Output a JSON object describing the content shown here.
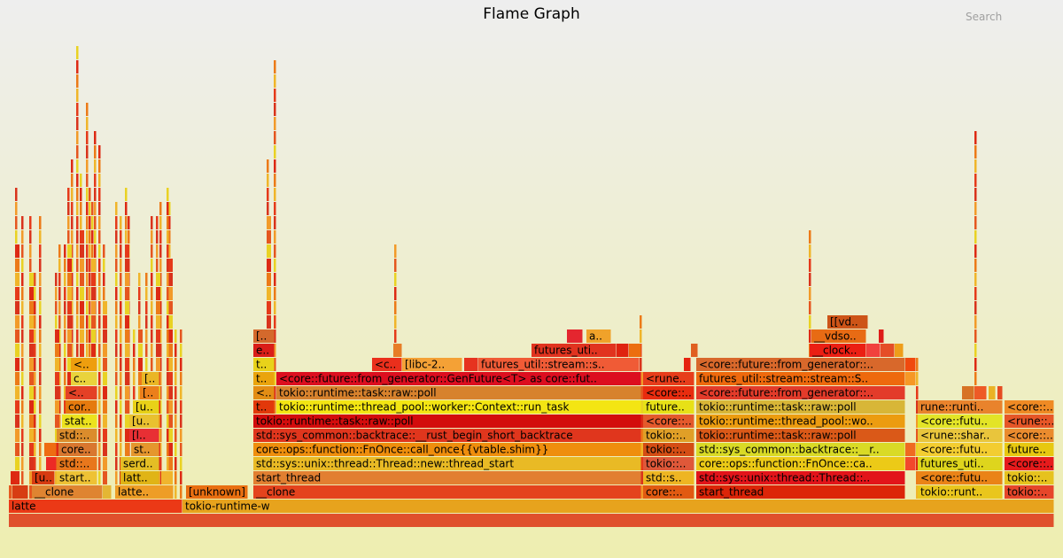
{
  "header": {
    "title": "Flame Graph",
    "search_label": "Search"
  },
  "chart_data": {
    "type": "flamegraph",
    "total_samples": 1180,
    "max_depth": 34,
    "frames": [
      {
        "name": "",
        "s": 0,
        "w": 1180,
        "d": 0,
        "c": "#e0502c"
      },
      {
        "name": "latte",
        "s": 0,
        "w": 196,
        "d": 1,
        "c": "#eb3916"
      },
      {
        "name": "tokio-runtime-w",
        "s": 196,
        "w": 984,
        "d": 1,
        "c": "#e7a31d"
      },
      {
        "name": "",
        "s": 0,
        "w": 4,
        "d": 2,
        "c": "#e55a20"
      },
      {
        "name": "",
        "s": 4,
        "w": 18,
        "d": 2,
        "c": "#d73c13"
      },
      {
        "name": "__clone",
        "s": 26,
        "w": 80,
        "d": 2,
        "c": "#df8431"
      },
      {
        "name": "",
        "s": 106,
        "w": 10,
        "d": 2,
        "c": "#e4b634"
      },
      {
        "name": "latte..",
        "s": 120,
        "w": 66,
        "d": 2,
        "c": "#ee9d26"
      },
      {
        "name": "[unknown]",
        "s": 200,
        "w": 70,
        "d": 2,
        "c": "#e96f11"
      },
      {
        "name": "__clone",
        "s": 276,
        "w": 438,
        "d": 2,
        "c": "#e4431d"
      },
      {
        "name": "core::..",
        "s": 716,
        "w": 58,
        "d": 2,
        "c": "#e15a11"
      },
      {
        "name": "start_thread",
        "s": 776,
        "w": 236,
        "d": 2,
        "c": "#dc2508"
      },
      {
        "name": "tokio::runt..",
        "s": 1026,
        "w": 96,
        "d": 2,
        "c": "#e9c61d"
      },
      {
        "name": "tokio::..",
        "s": 1124,
        "w": 56,
        "d": 2,
        "c": "#e6462a"
      },
      {
        "name": "",
        "s": 2,
        "w": 6,
        "d": 3,
        "c": "#dd2810"
      },
      {
        "name": "[u..",
        "s": 26,
        "w": 26,
        "d": 3,
        "c": "#d73b10"
      },
      {
        "name": "start..",
        "s": 54,
        "w": 46,
        "d": 3,
        "c": "#eec235"
      },
      {
        "name": "latt..",
        "s": 126,
        "w": 44,
        "d": 3,
        "c": "#e0b416"
      },
      {
        "name": "",
        "s": 172,
        "w": 10,
        "d": 3,
        "c": "#f0b52e"
      },
      {
        "name": "start_thread",
        "s": 276,
        "w": 438,
        "d": 3,
        "c": "#e27f31"
      },
      {
        "name": "std::s..",
        "s": 716,
        "w": 58,
        "d": 3,
        "c": "#eeb522"
      },
      {
        "name": "std::sys::unix::thread::Thread::..",
        "s": 776,
        "w": 236,
        "d": 3,
        "c": "#e2141a"
      },
      {
        "name": "<core::futu..",
        "s": 1026,
        "w": 96,
        "d": 3,
        "c": "#ea8317"
      },
      {
        "name": "tokio::..",
        "s": 1124,
        "w": 56,
        "d": 3,
        "c": "#e6c21e"
      },
      {
        "name": "",
        "s": 42,
        "w": 12,
        "d": 4,
        "c": "#ec2a25"
      },
      {
        "name": "std::..",
        "s": 54,
        "w": 46,
        "d": 4,
        "c": "#e8771c"
      },
      {
        "name": "serd..",
        "s": 126,
        "w": 44,
        "d": 4,
        "c": "#e4be25"
      },
      {
        "name": "std::sys::unix::thread::Thread::new::thread_start",
        "s": 276,
        "w": 438,
        "d": 4,
        "c": "#e9ba25"
      },
      {
        "name": "tokio::..",
        "s": 716,
        "w": 58,
        "d": 4,
        "c": "#df5839"
      },
      {
        "name": "core::ops::function::FnOnce::ca..",
        "s": 776,
        "w": 236,
        "d": 4,
        "c": "#ecca17"
      },
      {
        "name": "",
        "s": 1012,
        "w": 12,
        "d": 4,
        "c": "#f2482c"
      },
      {
        "name": "futures_uti..",
        "s": 1026,
        "w": 96,
        "d": 4,
        "c": "#ded51d"
      },
      {
        "name": "<core::..",
        "s": 1124,
        "w": 56,
        "d": 4,
        "c": "#e61b1c"
      },
      {
        "name": "",
        "s": 40,
        "w": 14,
        "d": 5,
        "c": "#ee6c12"
      },
      {
        "name": "core..",
        "s": 56,
        "w": 44,
        "d": 5,
        "c": "#d9772f"
      },
      {
        "name": "st..",
        "s": 138,
        "w": 32,
        "d": 5,
        "c": "#e5962d"
      },
      {
        "name": "core::ops::function::FnOnce::call_once{{vtable.shim}}",
        "s": 276,
        "w": 438,
        "d": 5,
        "c": "#ef8e0d"
      },
      {
        "name": "tokio::..",
        "s": 716,
        "w": 58,
        "d": 5,
        "c": "#d44d14"
      },
      {
        "name": "std::sys_common::backtrace::__r..",
        "s": 776,
        "w": 236,
        "d": 5,
        "c": "#d9da26"
      },
      {
        "name": "",
        "s": 1012,
        "w": 12,
        "d": 5,
        "c": "#ef6921"
      },
      {
        "name": "<core::futu..",
        "s": 1026,
        "w": 96,
        "d": 5,
        "c": "#f3cd31"
      },
      {
        "name": "future..",
        "s": 1124,
        "w": 56,
        "d": 5,
        "c": "#e7c810"
      },
      {
        "name": "std::..",
        "s": 54,
        "w": 46,
        "d": 6,
        "c": "#db8c2c"
      },
      {
        "name": "[l..",
        "s": 136,
        "w": 34,
        "d": 6,
        "c": "#e82f34"
      },
      {
        "name": "std::sys_common::backtrace::__rust_begin_short_backtrace",
        "s": 276,
        "w": 438,
        "d": 6,
        "c": "#e0361d"
      },
      {
        "name": "tokio::..",
        "s": 716,
        "w": 58,
        "d": 6,
        "c": "#e09f27"
      },
      {
        "name": "tokio::runtime::task::raw::poll",
        "s": 776,
        "w": 236,
        "d": 6,
        "c": "#da5918"
      },
      {
        "name": "<rune::shar..",
        "s": 1026,
        "w": 96,
        "d": 6,
        "c": "#e9c53c"
      },
      {
        "name": "<core::..",
        "s": 1124,
        "w": 56,
        "d": 6,
        "c": "#ea8b2e"
      },
      {
        "name": "stat..",
        "s": 60,
        "w": 40,
        "d": 7,
        "c": "#ece21d"
      },
      {
        "name": "[u..",
        "s": 136,
        "w": 34,
        "d": 7,
        "c": "#e9c12f"
      },
      {
        "name": "tokio::runtime::task::raw::poll",
        "s": 276,
        "w": 438,
        "d": 7,
        "c": "#d30c0c"
      },
      {
        "name": "<core::..",
        "s": 716,
        "w": 58,
        "d": 7,
        "c": "#e4592b"
      },
      {
        "name": "tokio::runtime::thread_pool::wo..",
        "s": 776,
        "w": 236,
        "d": 7,
        "c": "#ec9c10"
      },
      {
        "name": "<core::futu..",
        "s": 1026,
        "w": 96,
        "d": 7,
        "c": "#e3e427"
      },
      {
        "name": "<rune::..",
        "s": 1124,
        "w": 56,
        "d": 7,
        "c": "#e65627"
      },
      {
        "name": "cor..",
        "s": 64,
        "w": 36,
        "d": 8,
        "c": "#e57a0e"
      },
      {
        "name": "[u..",
        "s": 140,
        "w": 30,
        "d": 8,
        "c": "#e8d118"
      },
      {
        "name": "t..",
        "s": 276,
        "w": 24,
        "d": 8,
        "c": "#e2380a"
      },
      {
        "name": "tokio::runtime::thread_pool::worker::Context::run_task",
        "s": 302,
        "w": 412,
        "d": 8,
        "c": "#f3e513"
      },
      {
        "name": "future..",
        "s": 716,
        "w": 58,
        "d": 8,
        "c": "#e7e117"
      },
      {
        "name": "tokio::runtime::task::raw::poll",
        "s": 776,
        "w": 236,
        "d": 8,
        "c": "#d8b637"
      },
      {
        "name": "rune::runti..",
        "s": 1026,
        "w": 96,
        "d": 8,
        "c": "#e9832c"
      },
      {
        "name": "<core::..",
        "s": 1124,
        "w": 56,
        "d": 8,
        "c": "#ef8a24"
      },
      {
        "name": "<..",
        "s": 64,
        "w": 36,
        "d": 9,
        "c": "#e44126"
      },
      {
        "name": "[..",
        "s": 148,
        "w": 22,
        "d": 9,
        "c": "#eb7f1b"
      },
      {
        "name": "<..",
        "s": 276,
        "w": 24,
        "d": 9,
        "c": "#e38d14"
      },
      {
        "name": "tokio::runtime::task::raw::poll",
        "s": 302,
        "w": 412,
        "d": 9,
        "c": "#d7822d"
      },
      {
        "name": "<core::..",
        "s": 716,
        "w": 58,
        "d": 9,
        "c": "#e82c0f"
      },
      {
        "name": "<core::future::from_generator::..",
        "s": 776,
        "w": 236,
        "d": 9,
        "c": "#e33b2a"
      },
      {
        "name": "",
        "s": 1076,
        "w": 14,
        "d": 9,
        "c": "#d77225"
      },
      {
        "name": "",
        "s": 1090,
        "w": 14,
        "d": 9,
        "c": "#ee5a26"
      },
      {
        "name": "",
        "s": 1106,
        "w": 8,
        "d": 9,
        "c": "#eab325"
      },
      {
        "name": "",
        "s": 1116,
        "w": 6,
        "d": 9,
        "c": "#e54b21"
      },
      {
        "name": "c..",
        "s": 70,
        "w": 30,
        "d": 10,
        "c": "#e9d33c"
      },
      {
        "name": "[..",
        "s": 150,
        "w": 20,
        "d": 10,
        "c": "#eab625"
      },
      {
        "name": "t..",
        "s": 276,
        "w": 24,
        "d": 10,
        "c": "#eaa40d"
      },
      {
        "name": "<core::future::from_generator::GenFuture<T> as core::fut..",
        "s": 302,
        "w": 412,
        "d": 10,
        "c": "#dc0e1f"
      },
      {
        "name": "<rune..",
        "s": 716,
        "w": 58,
        "d": 10,
        "c": "#e73d1b"
      },
      {
        "name": "futures_util::stream::stream::S..",
        "s": 776,
        "w": 236,
        "d": 10,
        "c": "#ee690d"
      },
      {
        "name": "",
        "s": 1012,
        "w": 12,
        "d": 10,
        "c": "#f69826"
      },
      {
        "name": "<..",
        "s": 70,
        "w": 30,
        "d": 11,
        "c": "#ee9e0e"
      },
      {
        "name": "t..",
        "s": 276,
        "w": 24,
        "d": 11,
        "c": "#e8d21a"
      },
      {
        "name": "<c..",
        "s": 410,
        "w": 34,
        "d": 11,
        "c": "#ea2f1c"
      },
      {
        "name": "[libc-2..",
        "s": 444,
        "w": 68,
        "d": 11,
        "c": "#f4a136"
      },
      {
        "name": "",
        "s": 514,
        "w": 16,
        "d": 11,
        "c": "#e6331f"
      },
      {
        "name": "futures_util::stream::s..",
        "s": 530,
        "w": 182,
        "d": 11,
        "c": "#f05b36"
      },
      {
        "name": "",
        "s": 762,
        "w": 8,
        "d": 11,
        "c": "#e52310"
      },
      {
        "name": "<core::future::from_generator::..",
        "s": 776,
        "w": 236,
        "d": 11,
        "c": "#d8682b"
      },
      {
        "name": "",
        "s": 1012,
        "w": 12,
        "d": 11,
        "c": "#f0490e"
      },
      {
        "name": "e..",
        "s": 276,
        "w": 24,
        "d": 12,
        "c": "#da1e18"
      },
      {
        "name": "",
        "s": 434,
        "w": 10,
        "d": 12,
        "c": "#e77d27"
      },
      {
        "name": "futures_uti..",
        "s": 590,
        "w": 96,
        "d": 12,
        "c": "#e1331f"
      },
      {
        "name": "",
        "s": 686,
        "w": 14,
        "d": 12,
        "c": "#df2310"
      },
      {
        "name": "",
        "s": 700,
        "w": 14,
        "d": 12,
        "c": "#ec6e0f"
      },
      {
        "name": "",
        "s": 770,
        "w": 8,
        "d": 12,
        "c": "#e05f21"
      },
      {
        "name": "__clock..",
        "s": 904,
        "w": 64,
        "d": 12,
        "c": "#eb1f13"
      },
      {
        "name": "",
        "s": 968,
        "w": 16,
        "d": 12,
        "c": "#f1413d"
      },
      {
        "name": "",
        "s": 984,
        "w": 16,
        "d": 12,
        "c": "#e54d27"
      },
      {
        "name": "",
        "s": 1000,
        "w": 10,
        "d": 12,
        "c": "#ee9e1a"
      },
      {
        "name": "[..",
        "s": 276,
        "w": 24,
        "d": 13,
        "c": "#d4692c"
      },
      {
        "name": "",
        "s": 630,
        "w": 18,
        "d": 13,
        "c": "#e4262f"
      },
      {
        "name": "a..",
        "s": 652,
        "w": 28,
        "d": 13,
        "c": "#f0a22a"
      },
      {
        "name": "__vdso..",
        "s": 906,
        "w": 62,
        "d": 13,
        "c": "#e86b14"
      },
      {
        "name": "",
        "s": 982,
        "w": 6,
        "d": 13,
        "c": "#de1c19"
      },
      {
        "name": "[[vd..",
        "s": 924,
        "w": 46,
        "d": 14,
        "c": "#cd5418"
      }
    ]
  }
}
